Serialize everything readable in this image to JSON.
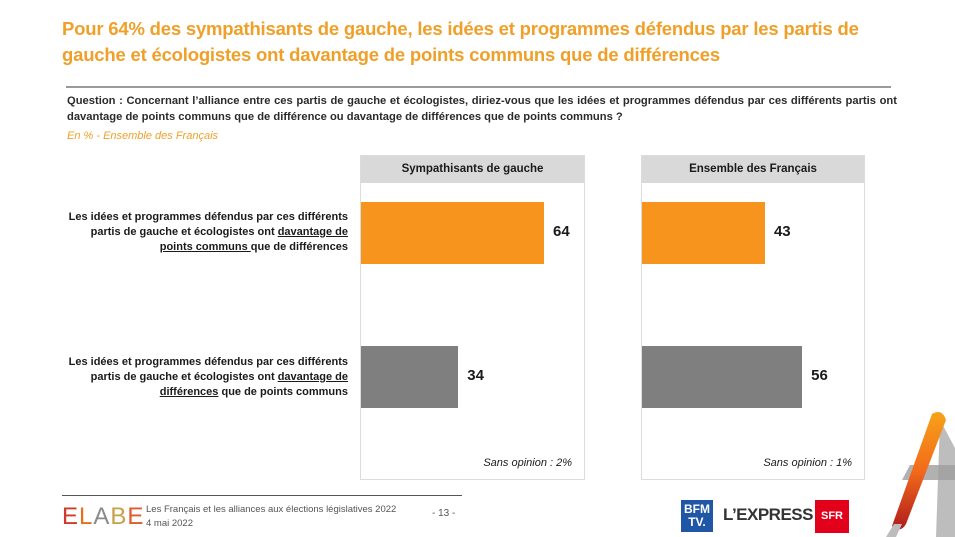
{
  "title": "Pour 64% des sympathisants de gauche, les idées et programmes défendus par les partis de gauche et écologistes ont davantage de points communs que de différences",
  "question": "Question : Concernant l’alliance entre ces partis de gauche et écologistes, diriez-vous que les idées et programmes défendus par ces différents partis ont davantage de points communs que de différence ou davantage de différences que de points communs ?",
  "subtitle": "En % - Ensemble des Français",
  "row_labels": [
    {
      "prefix": "Les idées et programmes défendus par ces différents partis de gauche et écologistes ont ",
      "underlined": "davantage de points communs ",
      "suffix": "que de différences"
    },
    {
      "prefix": "Les idées et programmes défendus par ces différents partis de gauche et écologistes ont ",
      "underlined": "davantage de différences",
      "suffix": " que de points communs"
    }
  ],
  "colors": {
    "accent": "#f7941d",
    "secondary": "#7f7f7f",
    "title": "#f0a028",
    "header_bg": "#d9d9d9"
  },
  "chart_data": {
    "type": "bar",
    "orientation": "horizontal",
    "title": "Pour 64% des sympathisants de gauche, les idées et programmes défendus par les partis de gauche et écologistes ont davantage de points communs que de différences",
    "unit": "%",
    "categories": [
      "Les idées et programmes défendus par ces différents partis de gauche et écologistes ont davantage de points communs que de différences",
      "Les idées et programmes défendus par ces différents partis de gauche et écologistes ont davantage de différences que de points communs"
    ],
    "panels": [
      {
        "name": "Sympathisants de gauche",
        "values": [
          64,
          34
        ],
        "labels": [
          "64",
          "34"
        ],
        "no_opinion": "Sans opinion : 2%"
      },
      {
        "name": "Ensemble des Français",
        "values": [
          43,
          56
        ],
        "labels": [
          "43",
          "56"
        ],
        "no_opinion": "Sans opinion : 1%"
      }
    ],
    "bar_colors": [
      "#f7941d",
      "#7f7f7f"
    ],
    "xlim": [
      0,
      78
    ],
    "grid": false,
    "legend": "none"
  },
  "footer": {
    "brand": [
      "E",
      "L",
      "A",
      "B",
      "E"
    ],
    "study": "Les Français et les alliances aux élections législatives 2022",
    "date": "4 mai 2022",
    "page": "- 13 -",
    "partners": {
      "bfm_line1": "BFM",
      "bfm_line2": "TV.",
      "express": "L’EXPRESS",
      "sfr": "SFR"
    }
  }
}
